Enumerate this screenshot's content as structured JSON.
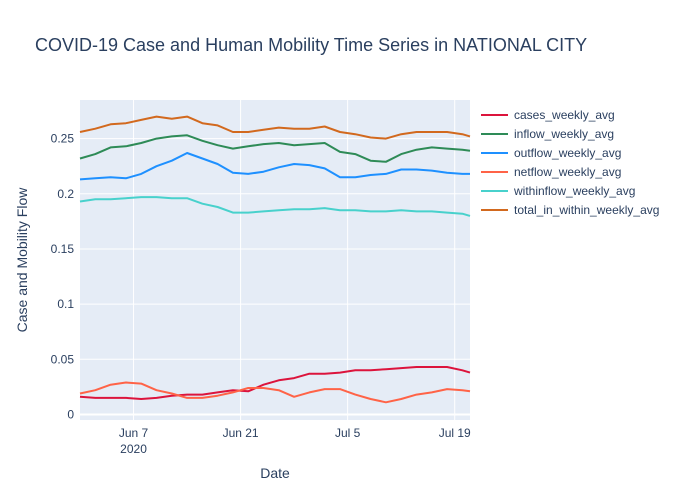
{
  "chart_data": {
    "type": "line",
    "title": "COVID-19 Case and Human Mobility Time Series in NATIONAL CITY",
    "xlabel": "Date",
    "ylabel": "Case and Mobility Flow",
    "x_start": "2020-05-31",
    "x_end": "2020-07-21",
    "ylim": [
      -0.005,
      0.285
    ],
    "x_ticks": [
      {
        "date": "2020-06-07",
        "label": "Jun 7",
        "sublabel": "2020"
      },
      {
        "date": "2020-06-21",
        "label": "Jun 21",
        "sublabel": ""
      },
      {
        "date": "2020-07-05",
        "label": "Jul 5",
        "sublabel": ""
      },
      {
        "date": "2020-07-19",
        "label": "Jul 19",
        "sublabel": ""
      }
    ],
    "y_ticks": [
      {
        "value": 0,
        "label": "0"
      },
      {
        "value": 0.05,
        "label": "0.05"
      },
      {
        "value": 0.1,
        "label": "0.1"
      },
      {
        "value": 0.15,
        "label": "0.15"
      },
      {
        "value": 0.2,
        "label": "0.2"
      },
      {
        "value": 0.25,
        "label": "0.25"
      }
    ],
    "grid": true,
    "legend_position": "right",
    "series": [
      {
        "name": "cases_weekly_avg",
        "color": "#dc143c",
        "points": [
          [
            "2020-05-31",
            0.016
          ],
          [
            "2020-06-02",
            0.015
          ],
          [
            "2020-06-04",
            0.015
          ],
          [
            "2020-06-06",
            0.015
          ],
          [
            "2020-06-08",
            0.014
          ],
          [
            "2020-06-10",
            0.015
          ],
          [
            "2020-06-12",
            0.017
          ],
          [
            "2020-06-14",
            0.018
          ],
          [
            "2020-06-16",
            0.018
          ],
          [
            "2020-06-18",
            0.02
          ],
          [
            "2020-06-20",
            0.022
          ],
          [
            "2020-06-22",
            0.021
          ],
          [
            "2020-06-24",
            0.027
          ],
          [
            "2020-06-26",
            0.031
          ],
          [
            "2020-06-28",
            0.033
          ],
          [
            "2020-06-30",
            0.037
          ],
          [
            "2020-07-02",
            0.037
          ],
          [
            "2020-07-04",
            0.038
          ],
          [
            "2020-07-06",
            0.04
          ],
          [
            "2020-07-08",
            0.04
          ],
          [
            "2020-07-10",
            0.041
          ],
          [
            "2020-07-12",
            0.042
          ],
          [
            "2020-07-14",
            0.043
          ],
          [
            "2020-07-16",
            0.043
          ],
          [
            "2020-07-18",
            0.043
          ],
          [
            "2020-07-20",
            0.04
          ],
          [
            "2020-07-21",
            0.038
          ]
        ]
      },
      {
        "name": "inflow_weekly_avg",
        "color": "#2e8b57",
        "points": [
          [
            "2020-05-31",
            0.232
          ],
          [
            "2020-06-02",
            0.236
          ],
          [
            "2020-06-04",
            0.242
          ],
          [
            "2020-06-06",
            0.243
          ],
          [
            "2020-06-08",
            0.246
          ],
          [
            "2020-06-10",
            0.25
          ],
          [
            "2020-06-12",
            0.252
          ],
          [
            "2020-06-14",
            0.253
          ],
          [
            "2020-06-16",
            0.248
          ],
          [
            "2020-06-18",
            0.244
          ],
          [
            "2020-06-20",
            0.241
          ],
          [
            "2020-06-22",
            0.243
          ],
          [
            "2020-06-24",
            0.245
          ],
          [
            "2020-06-26",
            0.246
          ],
          [
            "2020-06-28",
            0.244
          ],
          [
            "2020-06-30",
            0.245
          ],
          [
            "2020-07-02",
            0.246
          ],
          [
            "2020-07-04",
            0.238
          ],
          [
            "2020-07-06",
            0.236
          ],
          [
            "2020-07-08",
            0.23
          ],
          [
            "2020-07-10",
            0.229
          ],
          [
            "2020-07-12",
            0.236
          ],
          [
            "2020-07-14",
            0.24
          ],
          [
            "2020-07-16",
            0.242
          ],
          [
            "2020-07-18",
            0.241
          ],
          [
            "2020-07-20",
            0.24
          ],
          [
            "2020-07-21",
            0.239
          ]
        ]
      },
      {
        "name": "outflow_weekly_avg",
        "color": "#1e90ff",
        "points": [
          [
            "2020-05-31",
            0.213
          ],
          [
            "2020-06-02",
            0.214
          ],
          [
            "2020-06-04",
            0.215
          ],
          [
            "2020-06-06",
            0.214
          ],
          [
            "2020-06-08",
            0.218
          ],
          [
            "2020-06-10",
            0.225
          ],
          [
            "2020-06-12",
            0.23
          ],
          [
            "2020-06-14",
            0.237
          ],
          [
            "2020-06-16",
            0.232
          ],
          [
            "2020-06-18",
            0.227
          ],
          [
            "2020-06-20",
            0.219
          ],
          [
            "2020-06-22",
            0.218
          ],
          [
            "2020-06-24",
            0.22
          ],
          [
            "2020-06-26",
            0.224
          ],
          [
            "2020-06-28",
            0.227
          ],
          [
            "2020-06-30",
            0.226
          ],
          [
            "2020-07-02",
            0.223
          ],
          [
            "2020-07-04",
            0.215
          ],
          [
            "2020-07-06",
            0.215
          ],
          [
            "2020-07-08",
            0.217
          ],
          [
            "2020-07-10",
            0.218
          ],
          [
            "2020-07-12",
            0.222
          ],
          [
            "2020-07-14",
            0.222
          ],
          [
            "2020-07-16",
            0.221
          ],
          [
            "2020-07-18",
            0.219
          ],
          [
            "2020-07-20",
            0.218
          ],
          [
            "2020-07-21",
            0.218
          ]
        ]
      },
      {
        "name": "netflow_weekly_avg",
        "color": "#ff6347",
        "points": [
          [
            "2020-05-31",
            0.019
          ],
          [
            "2020-06-02",
            0.022
          ],
          [
            "2020-06-04",
            0.027
          ],
          [
            "2020-06-06",
            0.029
          ],
          [
            "2020-06-08",
            0.028
          ],
          [
            "2020-06-10",
            0.022
          ],
          [
            "2020-06-12",
            0.019
          ],
          [
            "2020-06-14",
            0.015
          ],
          [
            "2020-06-16",
            0.015
          ],
          [
            "2020-06-18",
            0.017
          ],
          [
            "2020-06-20",
            0.02
          ],
          [
            "2020-06-22",
            0.024
          ],
          [
            "2020-06-24",
            0.024
          ],
          [
            "2020-06-26",
            0.022
          ],
          [
            "2020-06-28",
            0.016
          ],
          [
            "2020-06-30",
            0.02
          ],
          [
            "2020-07-02",
            0.023
          ],
          [
            "2020-07-04",
            0.023
          ],
          [
            "2020-07-06",
            0.018
          ],
          [
            "2020-07-08",
            0.014
          ],
          [
            "2020-07-10",
            0.011
          ],
          [
            "2020-07-12",
            0.014
          ],
          [
            "2020-07-14",
            0.018
          ],
          [
            "2020-07-16",
            0.02
          ],
          [
            "2020-07-18",
            0.023
          ],
          [
            "2020-07-20",
            0.022
          ],
          [
            "2020-07-21",
            0.021
          ]
        ]
      },
      {
        "name": "withinflow_weekly_avg",
        "color": "#48d1cc",
        "points": [
          [
            "2020-05-31",
            0.193
          ],
          [
            "2020-06-02",
            0.195
          ],
          [
            "2020-06-04",
            0.195
          ],
          [
            "2020-06-06",
            0.196
          ],
          [
            "2020-06-08",
            0.197
          ],
          [
            "2020-06-10",
            0.197
          ],
          [
            "2020-06-12",
            0.196
          ],
          [
            "2020-06-14",
            0.196
          ],
          [
            "2020-06-16",
            0.191
          ],
          [
            "2020-06-18",
            0.188
          ],
          [
            "2020-06-20",
            0.183
          ],
          [
            "2020-06-22",
            0.183
          ],
          [
            "2020-06-24",
            0.184
          ],
          [
            "2020-06-26",
            0.185
          ],
          [
            "2020-06-28",
            0.186
          ],
          [
            "2020-06-30",
            0.186
          ],
          [
            "2020-07-02",
            0.187
          ],
          [
            "2020-07-04",
            0.185
          ],
          [
            "2020-07-06",
            0.185
          ],
          [
            "2020-07-08",
            0.184
          ],
          [
            "2020-07-10",
            0.184
          ],
          [
            "2020-07-12",
            0.185
          ],
          [
            "2020-07-14",
            0.184
          ],
          [
            "2020-07-16",
            0.184
          ],
          [
            "2020-07-18",
            0.183
          ],
          [
            "2020-07-20",
            0.182
          ],
          [
            "2020-07-21",
            0.18
          ]
        ]
      },
      {
        "name": "total_in_within_weekly_avg",
        "color": "#d2691e",
        "points": [
          [
            "2020-05-31",
            0.256
          ],
          [
            "2020-06-02",
            0.259
          ],
          [
            "2020-06-04",
            0.263
          ],
          [
            "2020-06-06",
            0.264
          ],
          [
            "2020-06-08",
            0.267
          ],
          [
            "2020-06-10",
            0.27
          ],
          [
            "2020-06-12",
            0.268
          ],
          [
            "2020-06-14",
            0.27
          ],
          [
            "2020-06-16",
            0.264
          ],
          [
            "2020-06-18",
            0.262
          ],
          [
            "2020-06-20",
            0.256
          ],
          [
            "2020-06-22",
            0.256
          ],
          [
            "2020-06-24",
            0.258
          ],
          [
            "2020-06-26",
            0.26
          ],
          [
            "2020-06-28",
            0.259
          ],
          [
            "2020-06-30",
            0.259
          ],
          [
            "2020-07-02",
            0.261
          ],
          [
            "2020-07-04",
            0.256
          ],
          [
            "2020-07-06",
            0.254
          ],
          [
            "2020-07-08",
            0.251
          ],
          [
            "2020-07-10",
            0.25
          ],
          [
            "2020-07-12",
            0.254
          ],
          [
            "2020-07-14",
            0.256
          ],
          [
            "2020-07-16",
            0.256
          ],
          [
            "2020-07-18",
            0.256
          ],
          [
            "2020-07-20",
            0.254
          ],
          [
            "2020-07-21",
            0.252
          ]
        ]
      }
    ]
  }
}
